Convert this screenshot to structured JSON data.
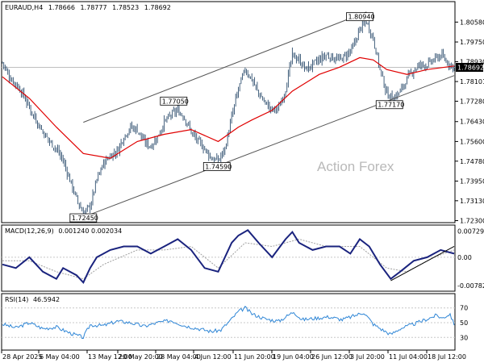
{
  "header": {
    "symbol": "EURAUD,H4",
    "open": "1.78666",
    "high": "1.78777",
    "low": "1.78523",
    "close": "1.78692"
  },
  "watermark": "Action Forex",
  "colors": {
    "candle": "#2f4f6f",
    "ma": "#e00000",
    "macd": "#1a237e",
    "signal": "#a0a0a0",
    "rsi": "#2f86d6",
    "channel": "#555555",
    "price_tag_bg": "#000000"
  },
  "chart_data": [
    {
      "type": "candlestick",
      "name": "EURAUD,H4",
      "ylim": [
        1.7225,
        1.814
      ],
      "y_ticks": [
        "1.80580",
        "1.79750",
        "1.78930",
        "1.78101",
        "1.77280",
        "1.76430",
        "1.75600",
        "1.74780",
        "1.73950",
        "1.73130",
        "1.72300"
      ],
      "current_price": "1.78692",
      "x_ticks": [
        "28 Apr 2025",
        "6 May 04:00",
        "13 May 12:00",
        "20 May 20:00",
        "28 May 04:00",
        "4 Jun 12:00",
        "11 Jun 20:00",
        "19 Jun 04:00",
        "26 Jun 12:00",
        "3 Jul 20:00",
        "11 Jul 04:00",
        "18 Jul 12:00"
      ],
      "close_path": [
        [
          0,
          1.789
        ],
        [
          5,
          1.783
        ],
        [
          10,
          1.78
        ],
        [
          15,
          1.776
        ],
        [
          20,
          1.77
        ],
        [
          25,
          1.765
        ],
        [
          30,
          1.76
        ],
        [
          35,
          1.756
        ],
        [
          40,
          1.753
        ],
        [
          45,
          1.748
        ],
        [
          50,
          1.74
        ],
        [
          55,
          1.732
        ],
        [
          60,
          1.726
        ],
        [
          65,
          1.729
        ],
        [
          70,
          1.74
        ],
        [
          75,
          1.747
        ],
        [
          80,
          1.75
        ],
        [
          85,
          1.752
        ],
        [
          90,
          1.758
        ],
        [
          95,
          1.762
        ],
        [
          100,
          1.761
        ],
        [
          105,
          1.756
        ],
        [
          110,
          1.754
        ],
        [
          115,
          1.758
        ],
        [
          120,
          1.764
        ],
        [
          125,
          1.767
        ],
        [
          130,
          1.769
        ],
        [
          135,
          1.766
        ],
        [
          140,
          1.76
        ],
        [
          145,
          1.756
        ],
        [
          150,
          1.753
        ],
        [
          155,
          1.749
        ],
        [
          160,
          1.748
        ],
        [
          165,
          1.753
        ],
        [
          170,
          1.766
        ],
        [
          175,
          1.778
        ],
        [
          180,
          1.786
        ],
        [
          185,
          1.782
        ],
        [
          190,
          1.776
        ],
        [
          195,
          1.772
        ],
        [
          200,
          1.769
        ],
        [
          205,
          1.77
        ],
        [
          210,
          1.778
        ],
        [
          215,
          1.792
        ],
        [
          220,
          1.79
        ],
        [
          225,
          1.786
        ],
        [
          230,
          1.788
        ],
        [
          235,
          1.79
        ],
        [
          240,
          1.792
        ],
        [
          245,
          1.791
        ],
        [
          250,
          1.79
        ],
        [
          255,
          1.792
        ],
        [
          260,
          1.795
        ],
        [
          265,
          1.803
        ],
        [
          270,
          1.806
        ],
        [
          275,
          1.799
        ],
        [
          280,
          1.786
        ],
        [
          285,
          1.776
        ],
        [
          290,
          1.774
        ],
        [
          295,
          1.777
        ],
        [
          300,
          1.782
        ],
        [
          305,
          1.786
        ],
        [
          310,
          1.788
        ],
        [
          315,
          1.788
        ],
        [
          320,
          1.79
        ],
        [
          325,
          1.792
        ],
        [
          330,
          1.789
        ],
        [
          335,
          1.7869
        ]
      ],
      "moving_average": [
        [
          0,
          1.783
        ],
        [
          20,
          1.774
        ],
        [
          40,
          1.762
        ],
        [
          60,
          1.751
        ],
        [
          80,
          1.749
        ],
        [
          100,
          1.756
        ],
        [
          120,
          1.759
        ],
        [
          140,
          1.761
        ],
        [
          160,
          1.756
        ],
        [
          175,
          1.762
        ],
        [
          185,
          1.765
        ],
        [
          200,
          1.769
        ],
        [
          215,
          1.777
        ],
        [
          235,
          1.784
        ],
        [
          250,
          1.787
        ],
        [
          265,
          1.791
        ],
        [
          275,
          1.79
        ],
        [
          285,
          1.786
        ],
        [
          300,
          1.784
        ],
        [
          315,
          1.786
        ],
        [
          335,
          1.7875
        ]
      ],
      "channel_upper": [
        [
          60,
          1.764
        ],
        [
          270,
          1.81
        ]
      ],
      "channel_lower": [
        [
          60,
          1.7245
        ],
        [
          335,
          1.7835
        ]
      ],
      "annotations": [
        {
          "label": "1.72450",
          "x": 60,
          "y": 1.7245
        },
        {
          "label": "1.77050",
          "x": 127,
          "y": 1.7705
        },
        {
          "label": "1.74590",
          "x": 159,
          "y": 1.7459
        },
        {
          "label": "1.80940",
          "x": 265,
          "y": 1.8094
        },
        {
          "label": "1.77170",
          "x": 287,
          "y": 1.7717
        }
      ]
    },
    {
      "type": "line",
      "name": "MACD(12,26,9)",
      "label_values": "0.001240 0.002034",
      "ylim": [
        -0.0092,
        0.0078
      ],
      "y_ticks": [
        "0.007291",
        "0.00",
        "-0.00782"
      ],
      "series": [
        {
          "name": "MACD",
          "points": [
            [
              0,
              -0.002
            ],
            [
              10,
              -0.003
            ],
            [
              20,
              0.0
            ],
            [
              30,
              -0.004
            ],
            [
              40,
              -0.006
            ],
            [
              45,
              -0.003
            ],
            [
              55,
              -0.005
            ],
            [
              60,
              -0.007
            ],
            [
              65,
              -0.003
            ],
            [
              70,
              0.0
            ],
            [
              80,
              0.002
            ],
            [
              90,
              0.003
            ],
            [
              100,
              0.003
            ],
            [
              110,
              0.001
            ],
            [
              120,
              0.003
            ],
            [
              130,
              0.005
            ],
            [
              140,
              0.002
            ],
            [
              150,
              -0.003
            ],
            [
              160,
              -0.004
            ],
            [
              170,
              0.004
            ],
            [
              175,
              0.006
            ],
            [
              182,
              0.0075
            ],
            [
              190,
              0.004
            ],
            [
              200,
              0.0
            ],
            [
              210,
              0.005
            ],
            [
              215,
              0.007
            ],
            [
              220,
              0.004
            ],
            [
              230,
              0.002
            ],
            [
              240,
              0.003
            ],
            [
              250,
              0.003
            ],
            [
              258,
              0.001
            ],
            [
              265,
              0.005
            ],
            [
              272,
              0.003
            ],
            [
              280,
              -0.002
            ],
            [
              288,
              -0.006
            ],
            [
              295,
              -0.004
            ],
            [
              305,
              -0.001
            ],
            [
              315,
              0.0
            ],
            [
              325,
              0.002
            ],
            [
              330,
              0.0015
            ],
            [
              335,
              0.001
            ]
          ]
        },
        {
          "name": "Signal",
          "points": [
            [
              0,
              -0.001
            ],
            [
              20,
              -0.001
            ],
            [
              40,
              -0.004
            ],
            [
              60,
              -0.006
            ],
            [
              75,
              -0.002
            ],
            [
              100,
              0.002
            ],
            [
              120,
              0.002
            ],
            [
              140,
              0.003
            ],
            [
              160,
              -0.003
            ],
            [
              180,
              0.004
            ],
            [
              200,
              0.003
            ],
            [
              220,
              0.005
            ],
            [
              240,
              0.003
            ],
            [
              265,
              0.003
            ],
            [
              285,
              -0.003
            ],
            [
              300,
              -0.004
            ],
            [
              320,
              0.0
            ],
            [
              335,
              0.002
            ]
          ]
        }
      ],
      "trendline": [
        [
          288,
          -0.0065
        ],
        [
          335,
          0.003
        ]
      ]
    },
    {
      "type": "line",
      "name": "RSI(14)",
      "label_value": "46.5942",
      "ylim": [
        15,
        85
      ],
      "levels": [
        70,
        50,
        30
      ],
      "y_ticks": [
        "70",
        "50",
        "30"
      ],
      "series": [
        {
          "name": "RSI",
          "points": [
            [
              0,
              48
            ],
            [
              10,
              43
            ],
            [
              20,
              50
            ],
            [
              30,
              42
            ],
            [
              40,
              44
            ],
            [
              50,
              36
            ],
            [
              60,
              30
            ],
            [
              65,
              47
            ],
            [
              75,
              46
            ],
            [
              85,
              52
            ],
            [
              95,
              50
            ],
            [
              105,
              45
            ],
            [
              115,
              50
            ],
            [
              125,
              53
            ],
            [
              135,
              46
            ],
            [
              145,
              42
            ],
            [
              155,
              38
            ],
            [
              162,
              40
            ],
            [
              170,
              55
            ],
            [
              175,
              65
            ],
            [
              180,
              70
            ],
            [
              185,
              62
            ],
            [
              195,
              55
            ],
            [
              205,
              52
            ],
            [
              212,
              60
            ],
            [
              216,
              65
            ],
            [
              222,
              54
            ],
            [
              232,
              56
            ],
            [
              242,
              58
            ],
            [
              252,
              54
            ],
            [
              262,
              60
            ],
            [
              268,
              64
            ],
            [
              275,
              48
            ],
            [
              282,
              40
            ],
            [
              288,
              34
            ],
            [
              295,
              42
            ],
            [
              305,
              48
            ],
            [
              315,
              55
            ],
            [
              322,
              60
            ],
            [
              326,
              56
            ],
            [
              332,
              62
            ],
            [
              335,
              46.6
            ]
          ]
        }
      ]
    }
  ]
}
